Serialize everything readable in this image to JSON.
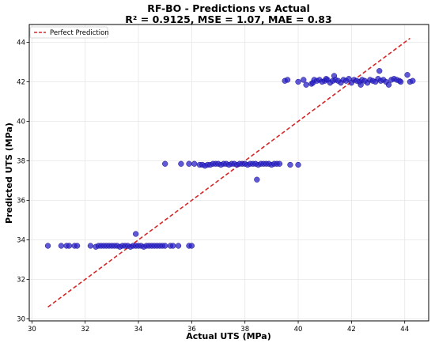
{
  "chart_data": {
    "type": "scatter",
    "title": "RF-BO - Predictions vs Actual",
    "subtitle": "R² = 0.9125, MSE = 1.07, MAE = 0.83",
    "xlabel": "Actual UTS (MPa)",
    "ylabel": "Predicted UTS (MPa)",
    "xlim": [
      29.9,
      44.9
    ],
    "ylim": [
      29.9,
      44.9
    ],
    "xticks": [
      "30",
      "32",
      "34",
      "36",
      "38",
      "40",
      "42",
      "44"
    ],
    "yticks": [
      "30",
      "32",
      "34",
      "36",
      "38",
      "40",
      "42",
      "44"
    ],
    "grid": true,
    "legend": {
      "position": "top-left",
      "entries": [
        "Perfect Prediction"
      ]
    },
    "colors": {
      "points": "#2a22c8",
      "point_edge": "#1a1090",
      "perfect_line": "#d62728"
    },
    "perfect_prediction": {
      "x": [
        30.6,
        44.2
      ],
      "y": [
        30.6,
        44.2
      ]
    },
    "series": [
      {
        "values": [
          [
            30.6,
            33.7
          ],
          [
            31.1,
            33.7
          ],
          [
            31.3,
            33.7
          ],
          [
            31.4,
            33.7
          ],
          [
            31.6,
            33.7
          ],
          [
            31.7,
            33.7
          ],
          [
            32.2,
            33.7
          ],
          [
            32.4,
            33.65
          ],
          [
            32.5,
            33.7
          ],
          [
            32.6,
            33.7
          ],
          [
            32.7,
            33.7
          ],
          [
            32.8,
            33.7
          ],
          [
            32.9,
            33.7
          ],
          [
            33.0,
            33.7
          ],
          [
            33.1,
            33.7
          ],
          [
            33.2,
            33.7
          ],
          [
            33.3,
            33.65
          ],
          [
            33.4,
            33.7
          ],
          [
            33.5,
            33.7
          ],
          [
            33.6,
            33.7
          ],
          [
            33.7,
            33.65
          ],
          [
            33.8,
            33.7
          ],
          [
            33.9,
            33.7
          ],
          [
            34.0,
            33.7
          ],
          [
            34.1,
            33.7
          ],
          [
            34.2,
            33.65
          ],
          [
            34.3,
            33.7
          ],
          [
            34.4,
            33.7
          ],
          [
            34.5,
            33.7
          ],
          [
            34.6,
            33.7
          ],
          [
            34.7,
            33.7
          ],
          [
            34.8,
            33.7
          ],
          [
            34.9,
            33.7
          ],
          [
            35.0,
            33.7
          ],
          [
            35.2,
            33.7
          ],
          [
            35.3,
            33.7
          ],
          [
            35.5,
            33.7
          ],
          [
            35.9,
            33.7
          ],
          [
            36.0,
            33.7
          ],
          [
            33.9,
            34.3
          ],
          [
            35.0,
            37.85
          ],
          [
            35.6,
            37.85
          ],
          [
            35.9,
            37.85
          ],
          [
            36.1,
            37.85
          ],
          [
            36.3,
            37.8
          ],
          [
            36.4,
            37.8
          ],
          [
            36.5,
            37.75
          ],
          [
            36.6,
            37.8
          ],
          [
            36.7,
            37.8
          ],
          [
            36.8,
            37.85
          ],
          [
            36.9,
            37.85
          ],
          [
            37.0,
            37.85
          ],
          [
            37.1,
            37.8
          ],
          [
            37.2,
            37.85
          ],
          [
            37.3,
            37.85
          ],
          [
            37.4,
            37.8
          ],
          [
            37.5,
            37.85
          ],
          [
            37.6,
            37.85
          ],
          [
            37.7,
            37.8
          ],
          [
            37.8,
            37.85
          ],
          [
            37.9,
            37.85
          ],
          [
            38.0,
            37.85
          ],
          [
            38.1,
            37.8
          ],
          [
            38.2,
            37.85
          ],
          [
            38.3,
            37.85
          ],
          [
            38.4,
            37.85
          ],
          [
            38.5,
            37.8
          ],
          [
            38.6,
            37.85
          ],
          [
            38.7,
            37.85
          ],
          [
            38.8,
            37.85
          ],
          [
            38.9,
            37.85
          ],
          [
            39.0,
            37.8
          ],
          [
            39.1,
            37.85
          ],
          [
            39.2,
            37.85
          ],
          [
            39.3,
            37.85
          ],
          [
            39.7,
            37.8
          ],
          [
            40.0,
            37.8
          ],
          [
            38.45,
            37.05
          ],
          [
            39.5,
            42.05
          ],
          [
            39.6,
            42.1
          ],
          [
            40.0,
            42.0
          ],
          [
            40.2,
            42.1
          ],
          [
            40.3,
            41.85
          ],
          [
            40.5,
            41.9
          ],
          [
            40.55,
            41.95
          ],
          [
            40.6,
            42.1
          ],
          [
            40.7,
            42.05
          ],
          [
            40.8,
            42.1
          ],
          [
            40.9,
            42.0
          ],
          [
            41.0,
            42.05
          ],
          [
            41.05,
            42.15
          ],
          [
            41.1,
            42.1
          ],
          [
            41.2,
            41.95
          ],
          [
            41.3,
            42.05
          ],
          [
            41.35,
            42.3
          ],
          [
            41.4,
            42.1
          ],
          [
            41.5,
            42.05
          ],
          [
            41.6,
            41.95
          ],
          [
            41.7,
            42.1
          ],
          [
            41.8,
            42.05
          ],
          [
            41.9,
            42.15
          ],
          [
            42.0,
            41.95
          ],
          [
            42.1,
            42.1
          ],
          [
            42.2,
            42.05
          ],
          [
            42.3,
            42.0
          ],
          [
            42.35,
            41.85
          ],
          [
            42.4,
            42.1
          ],
          [
            42.5,
            42.05
          ],
          [
            42.6,
            41.95
          ],
          [
            42.7,
            42.1
          ],
          [
            42.8,
            42.05
          ],
          [
            42.9,
            42.0
          ],
          [
            43.0,
            42.15
          ],
          [
            43.05,
            42.55
          ],
          [
            43.1,
            42.05
          ],
          [
            43.2,
            42.1
          ],
          [
            43.3,
            42.0
          ],
          [
            43.4,
            41.85
          ],
          [
            43.5,
            42.1
          ],
          [
            43.6,
            42.15
          ],
          [
            43.7,
            42.1
          ],
          [
            43.8,
            42.05
          ],
          [
            43.85,
            42.0
          ],
          [
            44.1,
            42.35
          ],
          [
            44.2,
            42.0
          ],
          [
            44.3,
            42.05
          ]
        ]
      }
    ]
  }
}
